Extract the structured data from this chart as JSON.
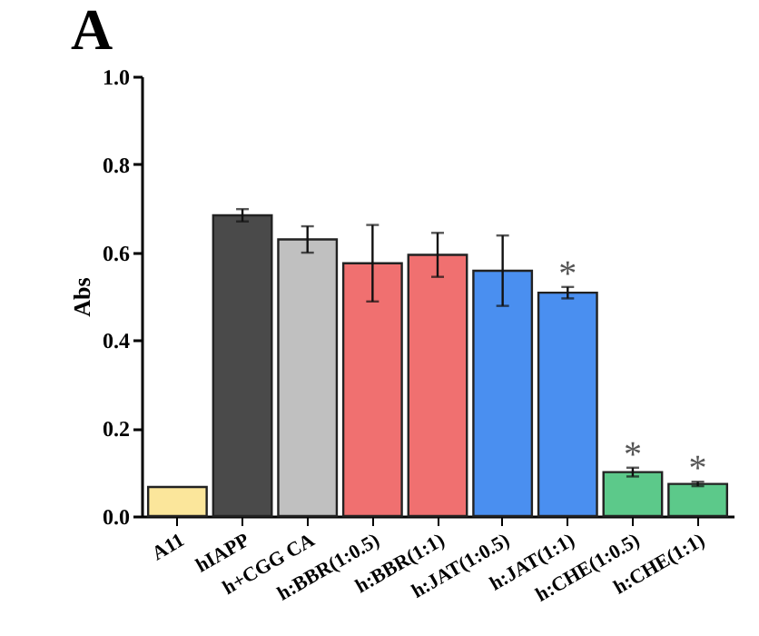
{
  "chart_data": {
    "type": "bar",
    "title": "A",
    "ylabel": "Abs",
    "categories": [
      "A11",
      "hIAPP",
      "h+CGG CA",
      "h:BBR(1:0.5)",
      "h:BBR(1:1)",
      "h:JAT(1:0.5)",
      "h:JAT(1:1)",
      "h:CHE(1:0.5)",
      "h:CHE(1:1)"
    ],
    "values": [
      0.066,
      0.684,
      0.629,
      0.575,
      0.594,
      0.558,
      0.508,
      0.1,
      0.073
    ],
    "errors": [
      null,
      0.014,
      0.03,
      0.087,
      0.05,
      0.08,
      0.013,
      0.01,
      0.005
    ],
    "colors": [
      "#fbe69b",
      "#4a4a4a",
      "#c0c0c0",
      "#f07070",
      "#f07070",
      "#4a8ff0",
      "#4a8ff0",
      "#5cc98a",
      "#5cc98a"
    ],
    "ylim": [
      0,
      1
    ],
    "yticks": [
      {
        "value": 0,
        "label": "0.0"
      },
      {
        "value": 0.2,
        "label": "0.2"
      },
      {
        "value": 0.4,
        "label": "0.4"
      },
      {
        "value": 0.6,
        "label": "0.6"
      },
      {
        "value": 0.8,
        "label": "0.8"
      },
      {
        "value": 1,
        "label": "1.0"
      }
    ],
    "grid": false,
    "annotations": [
      {
        "text": "*",
        "x": "h:JAT(1:1)",
        "y": 0.508
      },
      {
        "text": "*",
        "x": "h:CHE(1:0.5)",
        "y": 0.1
      },
      {
        "text": "*",
        "x": "h:CHE(1:1)",
        "y": 0.073
      }
    ]
  }
}
